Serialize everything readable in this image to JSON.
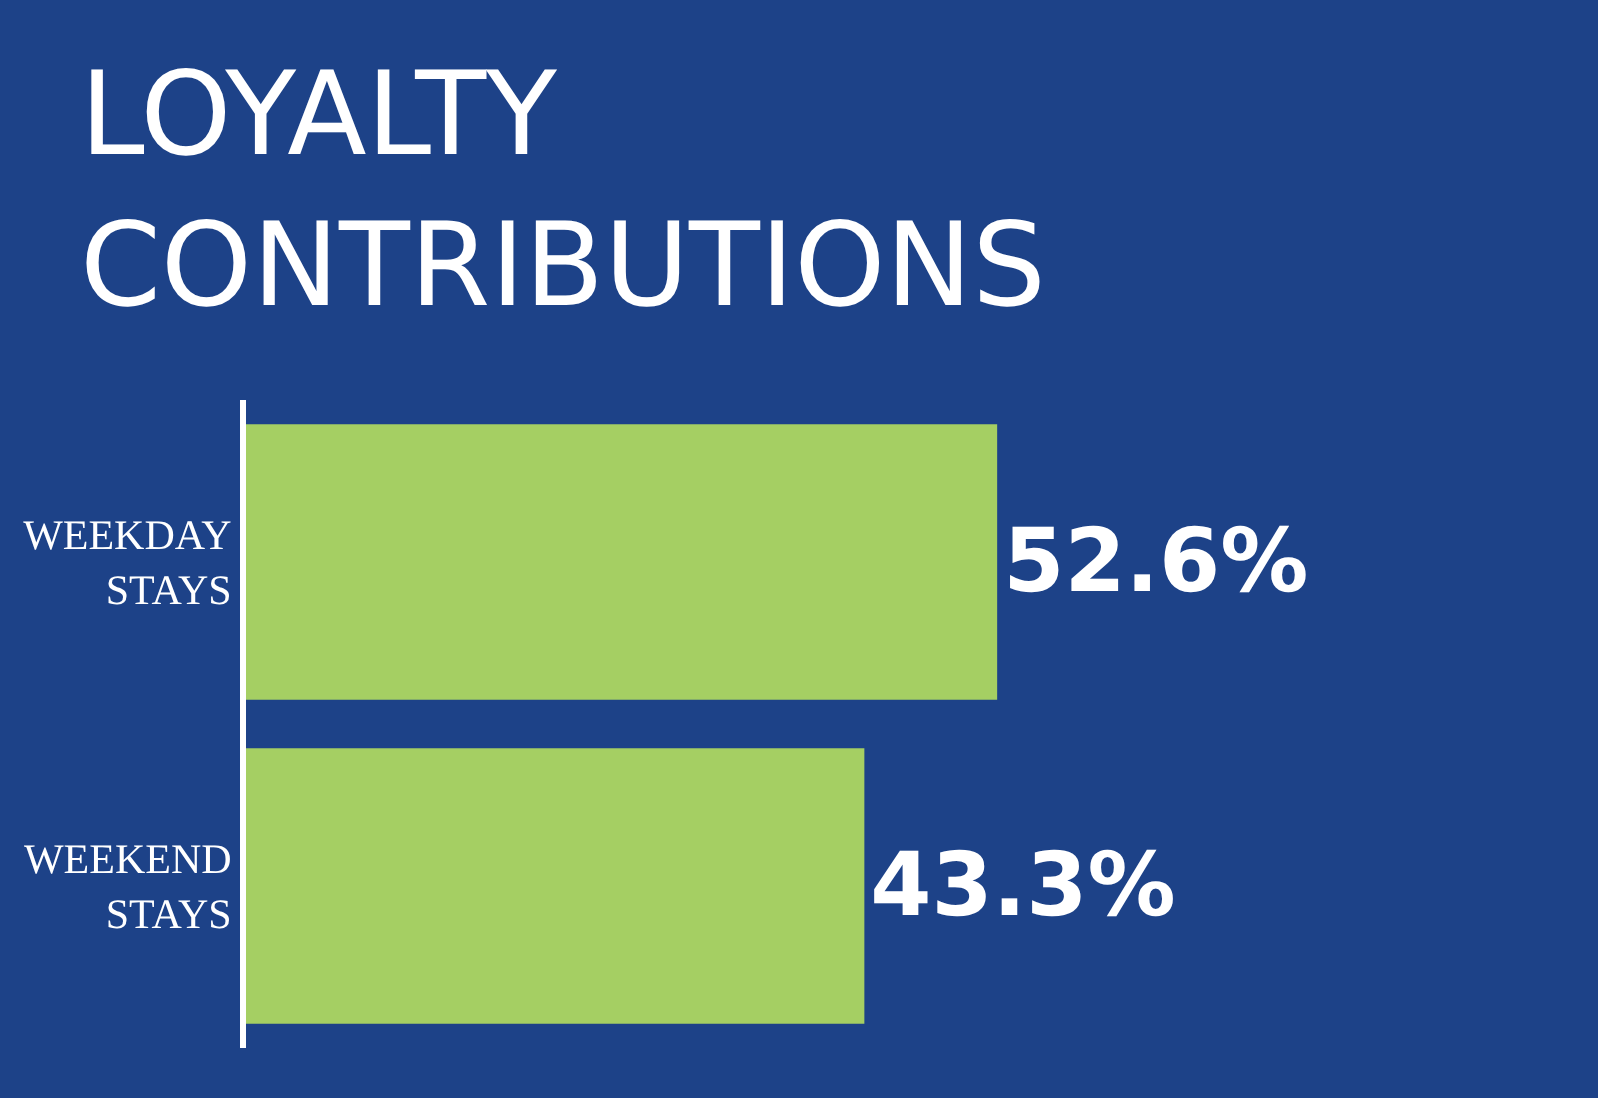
{
  "chart_data": {
    "type": "bar",
    "orientation": "horizontal",
    "title": "LOYALTY CONTRIBUTIONS",
    "categories": [
      "WEEKDAY STAYS",
      "WEEKEND STAYS"
    ],
    "values": [
      52.6,
      43.3
    ],
    "value_labels": [
      "52.6%",
      "43.3%"
    ],
    "color": "#a5cf63"
  }
}
